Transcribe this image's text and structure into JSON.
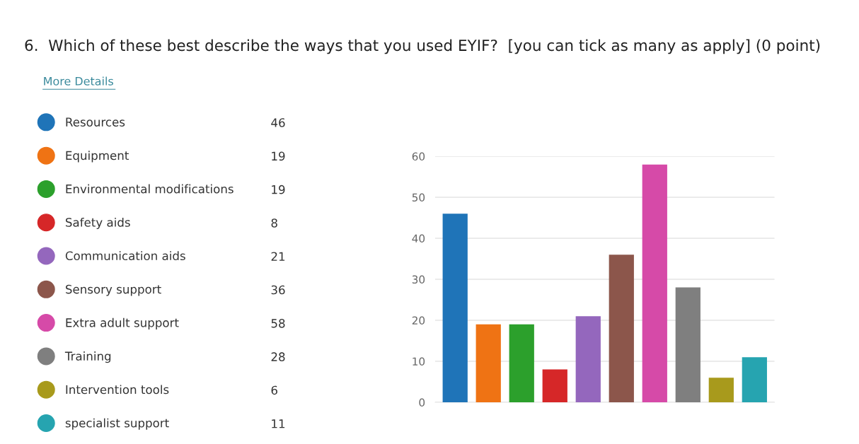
{
  "chart_data": [
    {
      "type": "bar",
      "title": "6.  Which of these best describe the ways that you used EYIF?  [you can tick as many as apply] (0 point)",
      "annotations": [
        "More Details"
      ],
      "categories": [
        null,
        null,
        null,
        null,
        null,
        null,
        null,
        null,
        null,
        null
      ],
      "series": [
        {
          "name": "Resources",
          "color": "#1f74b8",
          "values": [
            46,
            null,
            null,
            null,
            null,
            null,
            null,
            null,
            null,
            null
          ]
        },
        {
          "name": "Equipment",
          "color": "#ef7314",
          "values": [
            null,
            19,
            null,
            null,
            null,
            null,
            null,
            null,
            null,
            null
          ]
        },
        {
          "name": "Environmental modifications",
          "color": "#2ca02c",
          "values": [
            null,
            null,
            19,
            null,
            null,
            null,
            null,
            null,
            null,
            null
          ]
        },
        {
          "name": "Safety aids",
          "color": "#d62728",
          "values": [
            null,
            null,
            null,
            8,
            null,
            null,
            null,
            null,
            null,
            null
          ]
        },
        {
          "name": "Communication aids",
          "color": "#9467bd",
          "values": [
            null,
            null,
            null,
            null,
            21,
            null,
            null,
            null,
            null,
            null
          ]
        },
        {
          "name": "Sensory support",
          "color": "#8c564b",
          "values": [
            null,
            null,
            null,
            null,
            null,
            36,
            null,
            null,
            null,
            null
          ]
        },
        {
          "name": "Extra adult support",
          "color": "#d64aa8",
          "values": [
            null,
            null,
            null,
            null,
            null,
            null,
            58,
            null,
            null,
            null
          ]
        },
        {
          "name": "Training",
          "color": "#7f7f7f",
          "values": [
            null,
            null,
            null,
            null,
            null,
            null,
            null,
            28,
            null,
            null
          ]
        },
        {
          "name": "Intervention tools",
          "color": "#a89a1c",
          "values": [
            null,
            null,
            null,
            null,
            null,
            null,
            null,
            null,
            6,
            null
          ]
        },
        {
          "name": "specialist support",
          "color": "#26a4b0",
          "values": [
            null,
            null,
            null,
            null,
            null,
            null,
            null,
            null,
            null,
            11
          ]
        }
      ],
      "ylim": [
        0,
        60
      ],
      "yticks": [
        0,
        10,
        20,
        30,
        40,
        50,
        60
      ],
      "grid": "y",
      "legend": "left"
    },
    {
      "type": "other",
      "annotations": [
        "46",
        "19",
        "19",
        "8",
        "21",
        "36",
        "58",
        "28",
        "6",
        "11"
      ]
    }
  ]
}
